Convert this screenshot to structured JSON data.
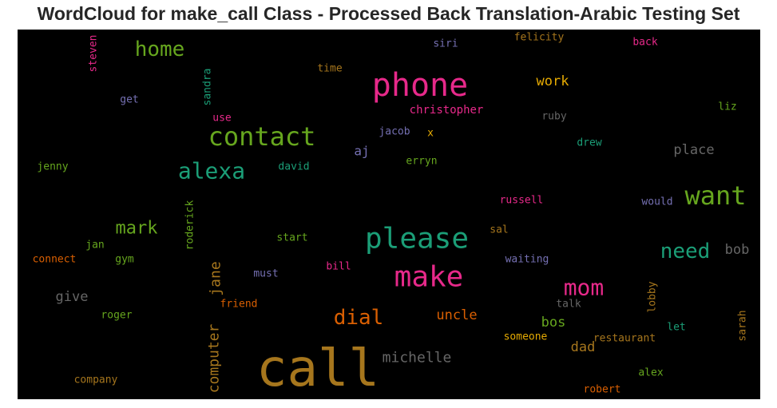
{
  "title": "WordCloud for make_call Class - Processed Back Translation-Arabic Testing Set",
  "chart_data": {
    "type": "wordcloud",
    "background": "#000000",
    "colormap": "Dark2",
    "words": [
      {
        "text": "call",
        "color": "#a6761d"
      },
      {
        "text": "phone",
        "color": "#e7298a"
      },
      {
        "text": "please",
        "color": "#1b9e77"
      },
      {
        "text": "make",
        "color": "#e7298a"
      },
      {
        "text": "contact",
        "color": "#66a61e"
      },
      {
        "text": "want",
        "color": "#66a61e"
      },
      {
        "text": "alexa",
        "color": "#1b9e77"
      },
      {
        "text": "mom",
        "color": "#e7298a"
      },
      {
        "text": "home",
        "color": "#66a61e"
      },
      {
        "text": "dial",
        "color": "#d95f02"
      },
      {
        "text": "need",
        "color": "#1b9e77"
      },
      {
        "text": "mark",
        "color": "#66a61e"
      },
      {
        "text": "michelle",
        "color": "#666666"
      },
      {
        "text": "computer",
        "color": "#a6761d"
      },
      {
        "text": "jane",
        "color": "#a6761d"
      },
      {
        "text": "work",
        "color": "#e6ab02"
      },
      {
        "text": "place",
        "color": "#666666"
      },
      {
        "text": "uncle",
        "color": "#d95f02"
      },
      {
        "text": "give",
        "color": "#666666"
      },
      {
        "text": "bob",
        "color": "#666666"
      },
      {
        "text": "bos",
        "color": "#66a61e"
      },
      {
        "text": "dad",
        "color": "#a6761d"
      },
      {
        "text": "aj",
        "color": "#7570b3"
      },
      {
        "text": "christopher",
        "color": "#e7298a"
      },
      {
        "text": "felicity",
        "color": "#a6761d"
      },
      {
        "text": "siri",
        "color": "#7570b3"
      },
      {
        "text": "back",
        "color": "#e7298a"
      },
      {
        "text": "time",
        "color": "#a6761d"
      },
      {
        "text": "get",
        "color": "#7570b3"
      },
      {
        "text": "use",
        "color": "#e7298a"
      },
      {
        "text": "jacob",
        "color": "#7570b3"
      },
      {
        "text": "x",
        "color": "#e6ab02"
      },
      {
        "text": "ruby",
        "color": "#666666"
      },
      {
        "text": "liz",
        "color": "#66a61e"
      },
      {
        "text": "drew",
        "color": "#1b9e77"
      },
      {
        "text": "jenny",
        "color": "#66a61e"
      },
      {
        "text": "david",
        "color": "#1b9e77"
      },
      {
        "text": "erryn",
        "color": "#66a61e"
      },
      {
        "text": "russell",
        "color": "#e7298a"
      },
      {
        "text": "would",
        "color": "#7570b3"
      },
      {
        "text": "sal",
        "color": "#a6761d"
      },
      {
        "text": "start",
        "color": "#66a61e"
      },
      {
        "text": "jan",
        "color": "#66a61e"
      },
      {
        "text": "connect",
        "color": "#d95f02"
      },
      {
        "text": "gym",
        "color": "#66a61e"
      },
      {
        "text": "waiting",
        "color": "#7570b3"
      },
      {
        "text": "bill",
        "color": "#e7298a"
      },
      {
        "text": "must",
        "color": "#7570b3"
      },
      {
        "text": "friend",
        "color": "#d95f02"
      },
      {
        "text": "talk",
        "color": "#666666"
      },
      {
        "text": "roger",
        "color": "#66a61e"
      },
      {
        "text": "let",
        "color": "#1b9e77"
      },
      {
        "text": "restaurant",
        "color": "#a6761d"
      },
      {
        "text": "someone",
        "color": "#e6ab02"
      },
      {
        "text": "company",
        "color": "#a6761d"
      },
      {
        "text": "alex",
        "color": "#66a61e"
      },
      {
        "text": "robert",
        "color": "#d95f02"
      },
      {
        "text": "steven",
        "color": "#e7298a"
      },
      {
        "text": "sandra",
        "color": "#1b9e77"
      },
      {
        "text": "roderick",
        "color": "#66a61e"
      },
      {
        "text": "lobby",
        "color": "#a6761d"
      },
      {
        "text": "sarah",
        "color": "#a6761d"
      }
    ]
  }
}
